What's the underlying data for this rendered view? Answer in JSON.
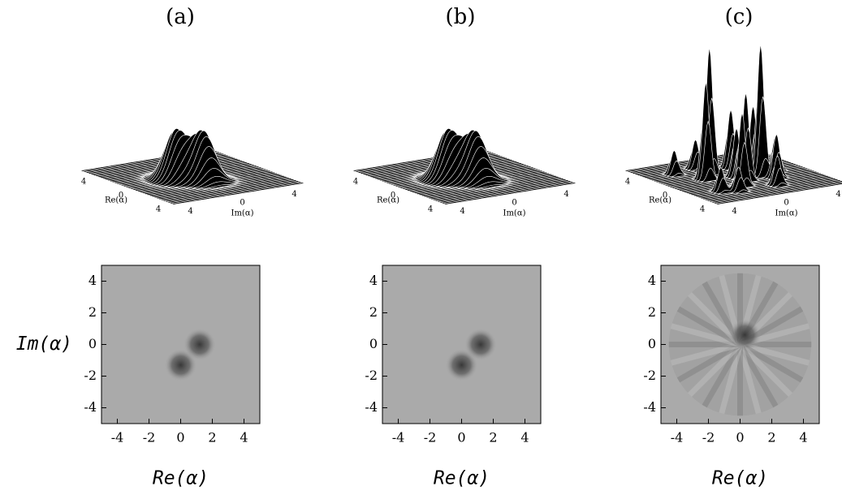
{
  "chart_data": [
    {
      "type": "surface",
      "title": "(a)",
      "xlabel": "Re(α)",
      "ylabel": "Im(α)",
      "xlim": [
        -5,
        5
      ],
      "ylim": [
        -5,
        5
      ],
      "xticks": [
        {
          "value": -4,
          "label": "4"
        },
        0,
        4
      ],
      "yticks": [
        {
          "value": -4,
          "label": "4"
        },
        0,
        4
      ],
      "peaks": [
        {
          "x": 0,
          "y": -1.3,
          "height": 1
        },
        {
          "x": 1.2,
          "y": 0,
          "height": 1
        }
      ]
    },
    {
      "type": "surface",
      "title": "(b)",
      "xlabel": "Re(α)",
      "ylabel": "Im(α)",
      "xlim": [
        -5,
        5
      ],
      "ylim": [
        -5,
        5
      ],
      "xticks": [
        {
          "value": -4,
          "label": "4"
        },
        0,
        4
      ],
      "yticks": [
        {
          "value": -4,
          "label": "4"
        },
        0,
        4
      ],
      "peaks": [
        {
          "x": 0,
          "y": -1.3,
          "height": 1
        },
        {
          "x": 1.2,
          "y": 0,
          "height": 1
        }
      ]
    },
    {
      "type": "surface",
      "title": "(c)",
      "xlabel": "Re(α)",
      "ylabel": "Im(α)",
      "xlim": [
        -5,
        5
      ],
      "ylim": [
        -5,
        5
      ],
      "xticks": [
        {
          "value": -4,
          "label": "4"
        },
        0,
        4
      ],
      "yticks": [
        {
          "value": -4,
          "label": "4"
        },
        0,
        4
      ],
      "peaks": [
        {
          "x": -1.5,
          "y": -1,
          "height": 2.6
        },
        {
          "x": 0.5,
          "y": 1.5,
          "height": 2.7
        },
        {
          "x": -0.5,
          "y": -2,
          "height": 2.0
        },
        {
          "x": 1,
          "y": 0,
          "height": 1.8
        },
        {
          "x": -2,
          "y": 1,
          "height": 1.2
        },
        {
          "x": 2,
          "y": -1,
          "height": 1.5
        },
        {
          "x": 0,
          "y": 0,
          "height": 1.0
        },
        {
          "x": -1,
          "y": 2,
          "height": 1.3
        },
        {
          "x": 1.5,
          "y": 2,
          "height": 0.9
        },
        {
          "x": -3,
          "y": -1,
          "height": 0.6
        },
        {
          "x": 3,
          "y": 1,
          "height": 0.6
        },
        {
          "x": -2.5,
          "y": -3,
          "height": 0.5
        },
        {
          "x": 2.5,
          "y": -3,
          "height": 0.5
        },
        {
          "x": 0,
          "y": 3,
          "height": 0.7
        },
        {
          "x": -3,
          "y": 2,
          "height": 0.5
        },
        {
          "x": 3,
          "y": -2,
          "height": 0.5
        }
      ]
    },
    {
      "type": "heatmap",
      "xlabel": "Re(α)",
      "ylabel": "Im(α)",
      "xlim": [
        -5,
        5
      ],
      "ylim": [
        -5,
        5
      ],
      "xticks": [
        -4,
        -2,
        0,
        2,
        4
      ],
      "yticks": [
        -4,
        -2,
        0,
        2,
        4
      ],
      "blobs": [
        {
          "x": 0,
          "y": -1.3
        },
        {
          "x": 1.2,
          "y": 0
        }
      ]
    },
    {
      "type": "heatmap",
      "xlabel": "Re(α)",
      "xlim": [
        -5,
        5
      ],
      "ylim": [
        -5,
        5
      ],
      "xticks": [
        -4,
        -2,
        0,
        2,
        4
      ],
      "yticks": [
        -4,
        -2,
        0,
        2,
        4
      ],
      "blobs": [
        {
          "x": 0,
          "y": -1.3
        },
        {
          "x": 1.2,
          "y": 0
        }
      ]
    },
    {
      "type": "heatmap",
      "xlabel": "Re(α)",
      "xlim": [
        -5,
        5
      ],
      "ylim": [
        -5,
        5
      ],
      "xticks": [
        -4,
        -2,
        0,
        2,
        4
      ],
      "yticks": [
        -4,
        -2,
        0,
        2,
        4
      ],
      "blobs": [
        {
          "x": 0.3,
          "y": 0.6
        }
      ]
    }
  ]
}
